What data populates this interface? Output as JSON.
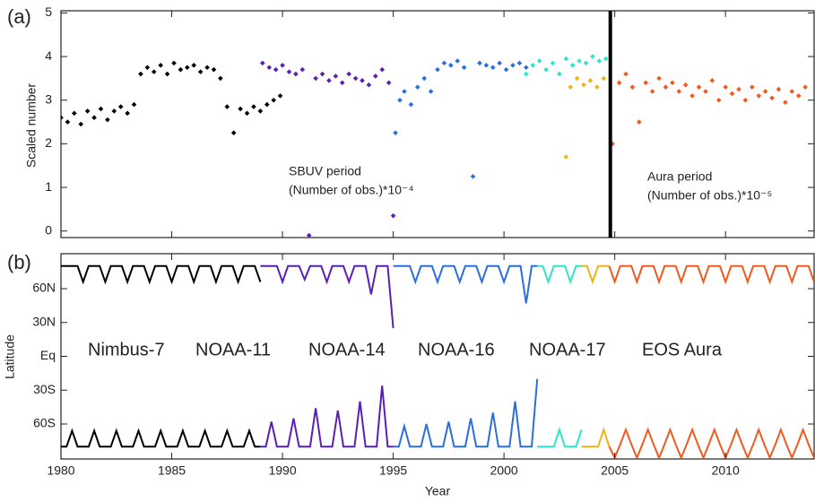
{
  "chart_data": [
    {
      "type": "scatter",
      "panel_label": "(a)",
      "ylabel": "Scaled number",
      "xlim": [
        1980,
        2014
      ],
      "ylim": [
        -0.15,
        5.05
      ],
      "yticks": [
        0,
        1,
        2,
        3,
        4,
        5
      ],
      "divider_x": 2004.8,
      "annotations": [
        {
          "text": "SBUV period",
          "color": "#222222"
        },
        {
          "text": "(Number of obs.)*10⁻⁴",
          "color": "#222222"
        },
        {
          "text": "Aura period",
          "color": "#222222"
        },
        {
          "text": "(Number of obs.)*10⁻⁵",
          "color": "#f05a1e"
        }
      ],
      "series": [
        {
          "color": "#000000",
          "x": [
            1980.0,
            1980.3,
            1980.6,
            1980.9,
            1981.2,
            1981.5,
            1981.8,
            1982.1,
            1982.4,
            1982.7,
            1983.0,
            1983.3,
            1983.6,
            1983.9,
            1984.2,
            1984.5,
            1984.8,
            1985.1,
            1985.4,
            1985.7,
            1986.0,
            1986.3,
            1986.6,
            1986.9,
            1987.2,
            1987.5,
            1987.8,
            1988.1,
            1988.4,
            1988.7,
            1989.0,
            1989.3,
            1989.6,
            1989.9
          ],
          "values": [
            2.6,
            2.5,
            2.7,
            2.45,
            2.75,
            2.6,
            2.8,
            2.55,
            2.75,
            2.85,
            2.7,
            2.9,
            3.6,
            3.75,
            3.65,
            3.8,
            3.6,
            3.85,
            3.7,
            3.75,
            3.8,
            3.65,
            3.75,
            3.7,
            3.5,
            2.85,
            2.25,
            2.8,
            2.7,
            2.85,
            2.75,
            2.9,
            3.0,
            3.1
          ]
        },
        {
          "color": "#5a1fb5",
          "x": [
            1989.1,
            1989.4,
            1989.7,
            1990.0,
            1990.3,
            1990.6,
            1990.9,
            1991.2,
            1991.5,
            1991.8,
            1992.1,
            1992.4,
            1992.7,
            1993.0,
            1993.3,
            1993.6,
            1993.9,
            1994.2,
            1994.5,
            1994.8,
            1995.0
          ],
          "values": [
            3.85,
            3.75,
            3.7,
            3.8,
            3.65,
            3.6,
            3.7,
            -0.1,
            3.5,
            3.6,
            3.45,
            3.55,
            3.4,
            3.6,
            3.5,
            3.45,
            3.35,
            3.55,
            3.7,
            3.4,
            0.35
          ]
        },
        {
          "color": "#2a6fdc",
          "x": [
            1995.1,
            1995.3,
            1995.5,
            1995.8,
            1996.1,
            1996.4,
            1996.7,
            1997.0,
            1997.3,
            1997.6,
            1997.9,
            1998.2,
            1998.6,
            1998.9,
            1999.2,
            1999.5,
            1999.8,
            2000.1,
            2000.4,
            2000.7,
            2001.0
          ],
          "values": [
            2.25,
            3.0,
            3.2,
            2.9,
            3.3,
            3.5,
            3.2,
            3.7,
            3.85,
            3.8,
            3.9,
            3.75,
            1.25,
            3.85,
            3.8,
            3.75,
            3.85,
            3.7,
            3.8,
            3.85,
            3.75
          ]
        },
        {
          "color": "#2ee6c8",
          "x": [
            2001.0,
            2001.3,
            2001.6,
            2001.9,
            2002.2,
            2002.5,
            2002.8,
            2003.1,
            2003.4,
            2003.7,
            2004.0,
            2004.3,
            2004.6
          ],
          "values": [
            3.6,
            3.8,
            3.9,
            3.7,
            3.85,
            3.6,
            3.95,
            3.8,
            3.9,
            3.85,
            4.0,
            3.9,
            3.95
          ]
        },
        {
          "color": "#f2b21a",
          "x": [
            2002.8,
            2003.0,
            2003.3,
            2003.6,
            2003.9,
            2004.2,
            2004.5
          ],
          "values": [
            1.7,
            3.3,
            3.5,
            3.35,
            3.45,
            3.3,
            3.5
          ]
        },
        {
          "color": "#f05a1e",
          "x": [
            2004.9,
            2005.2,
            2005.5,
            2005.8,
            2006.1,
            2006.4,
            2006.7,
            2007.0,
            2007.3,
            2007.6,
            2007.9,
            2008.2,
            2008.5,
            2008.8,
            2009.1,
            2009.4,
            2009.7,
            2010.0,
            2010.3,
            2010.6,
            2010.9,
            2011.2,
            2011.5,
            2011.8,
            2012.1,
            2012.4,
            2012.7,
            2013.0,
            2013.3,
            2013.6
          ],
          "values": [
            2.0,
            3.4,
            3.6,
            3.3,
            2.5,
            3.4,
            3.2,
            3.5,
            3.3,
            3.4,
            3.2,
            3.35,
            3.1,
            3.3,
            3.2,
            3.45,
            3.0,
            3.3,
            3.15,
            3.25,
            3.0,
            3.3,
            3.1,
            3.2,
            3.05,
            3.25,
            2.95,
            3.2,
            3.1,
            3.3
          ]
        }
      ]
    },
    {
      "type": "line",
      "panel_label": "(b)",
      "xlabel": "Year",
      "ylabel": "Latitude",
      "xlim": [
        1980,
        2014
      ],
      "xticks": [
        1980,
        1985,
        1990,
        1995,
        2000,
        2005,
        2010
      ],
      "ylim": [
        -91,
        91
      ],
      "yticks": [
        {
          "value": -60,
          "label": "60S"
        },
        {
          "value": -30,
          "label": "30S"
        },
        {
          "value": 0,
          "label": "Eq"
        },
        {
          "value": 30,
          "label": "30N"
        },
        {
          "value": 60,
          "label": "60N"
        }
      ],
      "series": [
        {
          "name": "Nimbus-7",
          "color": "#000000",
          "x": [
            1980,
            1980.25,
            1980.5,
            1980.75,
            1981,
            1981.25,
            1981.5,
            1981.75,
            1982,
            1982.25,
            1982.5,
            1982.75,
            1983,
            1983.25,
            1983.5,
            1983.75,
            1984,
            1984.25,
            1984.5,
            1984.75,
            1985,
            1985.25,
            1985.5,
            1985.75,
            1986,
            1986.25,
            1986.5,
            1986.75,
            1987,
            1987.25,
            1987.5,
            1987.75,
            1988,
            1988.25,
            1988.5,
            1988.75,
            1989
          ],
          "north": [
            80,
            80,
            80,
            80,
            66,
            80,
            80,
            80,
            66,
            80,
            80,
            80,
            66,
            80,
            80,
            80,
            66,
            80,
            80,
            80,
            66,
            80,
            80,
            80,
            66,
            80,
            80,
            80,
            66,
            80,
            80,
            80,
            66,
            80,
            80,
            80,
            66
          ],
          "south": [
            -80,
            -80,
            -66,
            -80,
            -80,
            -80,
            -66,
            -80,
            -80,
            -80,
            -66,
            -80,
            -80,
            -80,
            -66,
            -80,
            -80,
            -80,
            -66,
            -80,
            -80,
            -80,
            -66,
            -80,
            -80,
            -80,
            -66,
            -80,
            -80,
            -80,
            -66,
            -80,
            -80,
            -80,
            -66,
            -80,
            -80
          ]
        },
        {
          "name": "NOAA-11",
          "color": "#5a1fb5",
          "x": [
            1989,
            1989.25,
            1989.5,
            1989.75,
            1990,
            1990.25,
            1990.5,
            1990.75,
            1991,
            1991.25,
            1991.5,
            1991.75,
            1992,
            1992.25,
            1992.5,
            1992.75,
            1993,
            1993.25,
            1993.5,
            1993.75,
            1994,
            1994.25,
            1994.5,
            1994.75,
            1995
          ],
          "north": [
            80,
            80,
            80,
            80,
            66,
            80,
            80,
            80,
            68,
            80,
            80,
            80,
            66,
            80,
            80,
            80,
            66,
            80,
            80,
            80,
            55,
            80,
            80,
            80,
            25
          ],
          "south": [
            -80,
            -80,
            -58,
            -80,
            -80,
            -80,
            -55,
            -80,
            -80,
            -80,
            -46,
            -80,
            -80,
            -80,
            -48,
            -80,
            -80,
            -80,
            -40,
            -80,
            -80,
            -80,
            -26,
            -80,
            -80
          ]
        },
        {
          "name": "NOAA-14",
          "color": "#2a6fdc",
          "x": [
            1995,
            1995.25,
            1995.5,
            1995.75,
            1996,
            1996.25,
            1996.5,
            1996.75,
            1997,
            1997.25,
            1997.5,
            1997.75,
            1998,
            1998.25,
            1998.5,
            1998.75,
            1999,
            1999.25,
            1999.5,
            1999.75,
            2000,
            2000.25,
            2000.5,
            2000.75,
            2001,
            2001.25,
            2001.5
          ],
          "north": [
            80,
            80,
            80,
            80,
            66,
            80,
            80,
            80,
            66,
            80,
            80,
            80,
            66,
            80,
            80,
            80,
            66,
            80,
            80,
            80,
            66,
            80,
            80,
            80,
            47,
            80,
            80
          ],
          "south": [
            -80,
            -80,
            -62,
            -80,
            -80,
            -80,
            -60,
            -80,
            -80,
            -80,
            -58,
            -80,
            -80,
            -80,
            -55,
            -80,
            -80,
            -80,
            -50,
            -80,
            -80,
            -80,
            -40,
            -80,
            -80,
            -80,
            -20
          ]
        },
        {
          "name": "NOAA-16",
          "color": "#2ee6c8",
          "x": [
            2001.5,
            2001.75,
            2002,
            2002.25,
            2002.5,
            2002.75,
            2003,
            2003.25,
            2003.5
          ],
          "north": [
            80,
            80,
            66,
            80,
            80,
            80,
            66,
            80,
            80
          ],
          "south": [
            -80,
            -80,
            -80,
            -80,
            -65,
            -80,
            -80,
            -80,
            -65
          ]
        },
        {
          "name": "NOAA-17",
          "color": "#f2b21a",
          "x": [
            2003.5,
            2003.75,
            2004,
            2004.25,
            2004.5,
            2004.75
          ],
          "north": [
            80,
            80,
            66,
            80,
            80,
            80
          ],
          "south": [
            -80,
            -80,
            -80,
            -80,
            -65,
            -80
          ]
        },
        {
          "name": "EOS Aura",
          "color": "#f05a1e",
          "x": [
            2004.75,
            2005,
            2005.25,
            2005.5,
            2005.75,
            2006,
            2006.25,
            2006.5,
            2006.75,
            2007,
            2007.25,
            2007.5,
            2007.75,
            2008,
            2008.25,
            2008.5,
            2008.75,
            2009,
            2009.25,
            2009.5,
            2009.75,
            2010,
            2010.25,
            2010.5,
            2010.75,
            2011,
            2011.25,
            2011.5,
            2011.75,
            2012,
            2012.25,
            2012.5,
            2012.75,
            2013,
            2013.25,
            2013.5,
            2013.75,
            2014
          ],
          "north": [
            80,
            66,
            80,
            80,
            80,
            66,
            80,
            80,
            80,
            66,
            80,
            80,
            80,
            66,
            80,
            80,
            80,
            66,
            80,
            80,
            80,
            66,
            80,
            80,
            80,
            66,
            80,
            80,
            80,
            66,
            80,
            80,
            80,
            66,
            80,
            80,
            80,
            66
          ],
          "south": [
            -80,
            -90,
            -78,
            -65,
            -78,
            -90,
            -78,
            -65,
            -78,
            -90,
            -78,
            -65,
            -78,
            -90,
            -78,
            -65,
            -78,
            -90,
            -78,
            -65,
            -78,
            -90,
            -78,
            -65,
            -78,
            -90,
            -78,
            -65,
            -78,
            -90,
            -78,
            -65,
            -78,
            -90,
            -78,
            -65,
            -78,
            -90
          ]
        }
      ]
    }
  ]
}
